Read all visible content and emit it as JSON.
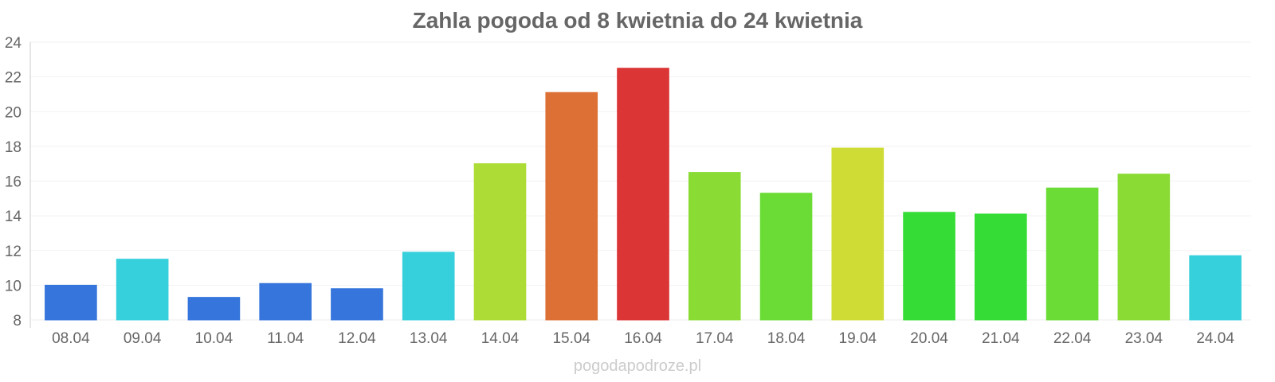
{
  "chart_data": {
    "type": "bar",
    "title": "Zahla pogoda od 8 kwietnia do 24 kwietnia",
    "xlabel": "",
    "ylabel": "",
    "ylim": [
      8,
      24
    ],
    "yticks": [
      8,
      10,
      12,
      14,
      16,
      18,
      20,
      22,
      24
    ],
    "grid": true,
    "categories": [
      "08.04",
      "09.04",
      "10.04",
      "11.04",
      "12.04",
      "13.04",
      "14.04",
      "15.04",
      "16.04",
      "17.04",
      "18.04",
      "19.04",
      "20.04",
      "21.04",
      "22.04",
      "23.04",
      "24.04"
    ],
    "values": [
      10.0,
      11.5,
      9.3,
      10.1,
      9.8,
      11.9,
      17.0,
      21.1,
      22.5,
      16.5,
      15.3,
      17.9,
      14.2,
      14.1,
      15.6,
      16.4,
      11.7
    ],
    "colors": [
      "#3575dc",
      "#36cfdc",
      "#3575dc",
      "#3575dc",
      "#3575dc",
      "#36cfdc",
      "#acdc35",
      "#dc7035",
      "#dc3535",
      "#8adc35",
      "#6adc35",
      "#cfdc35",
      "#35dc35",
      "#35dc35",
      "#6adc35",
      "#8adc35",
      "#36cfdc"
    ]
  },
  "watermark": "pogodapodroze.pl"
}
